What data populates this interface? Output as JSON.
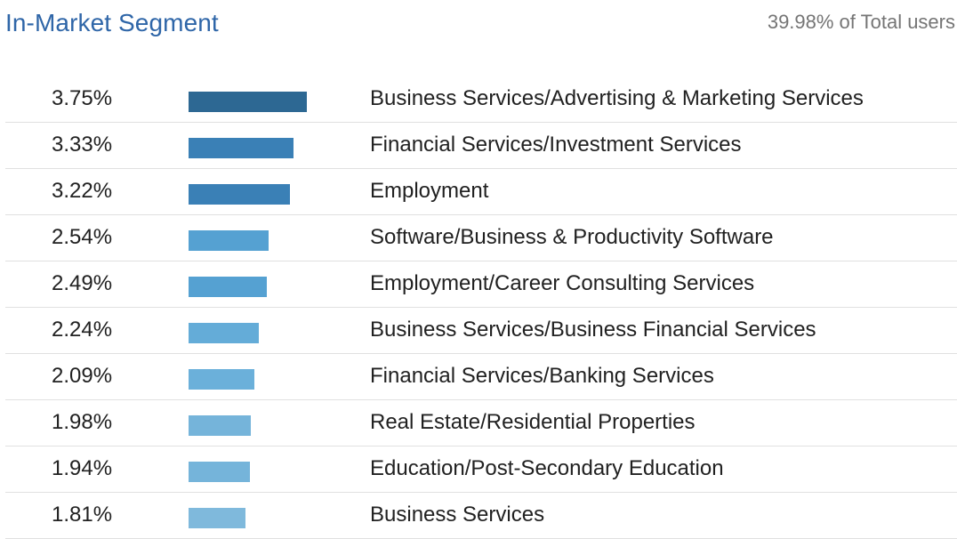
{
  "header": {
    "title": "In-Market Segment",
    "total": "39.98% of Total users"
  },
  "chart_data": {
    "type": "bar",
    "orientation": "horizontal",
    "title": "In-Market Segment",
    "subtitle": "39.98% of Total users",
    "categories": [
      "Business Services/Advertising & Marketing Services",
      "Financial Services/Investment Services",
      "Employment",
      "Software/Business & Productivity Software",
      "Employment/Career Consulting Services",
      "Business Services/Business Financial Services",
      "Financial Services/Banking Services",
      "Real Estate/Residential Properties",
      "Education/Post-Secondary Education",
      "Business Services"
    ],
    "values": [
      3.75,
      3.33,
      3.22,
      2.54,
      2.49,
      2.24,
      2.09,
      1.98,
      1.94,
      1.81
    ],
    "value_labels": [
      "3.75%",
      "3.33%",
      "3.22%",
      "2.54%",
      "2.49%",
      "2.24%",
      "2.09%",
      "1.98%",
      "1.94%",
      "1.81%"
    ],
    "unit": "%",
    "xlim": [
      0,
      3.75
    ],
    "colors": [
      "#2d6893",
      "#3a80b6",
      "#3a80b6",
      "#55a1d2",
      "#55a1d2",
      "#64acd8",
      "#6bb0da",
      "#75b4da",
      "#75b4da",
      "#7fb9dc"
    ]
  }
}
